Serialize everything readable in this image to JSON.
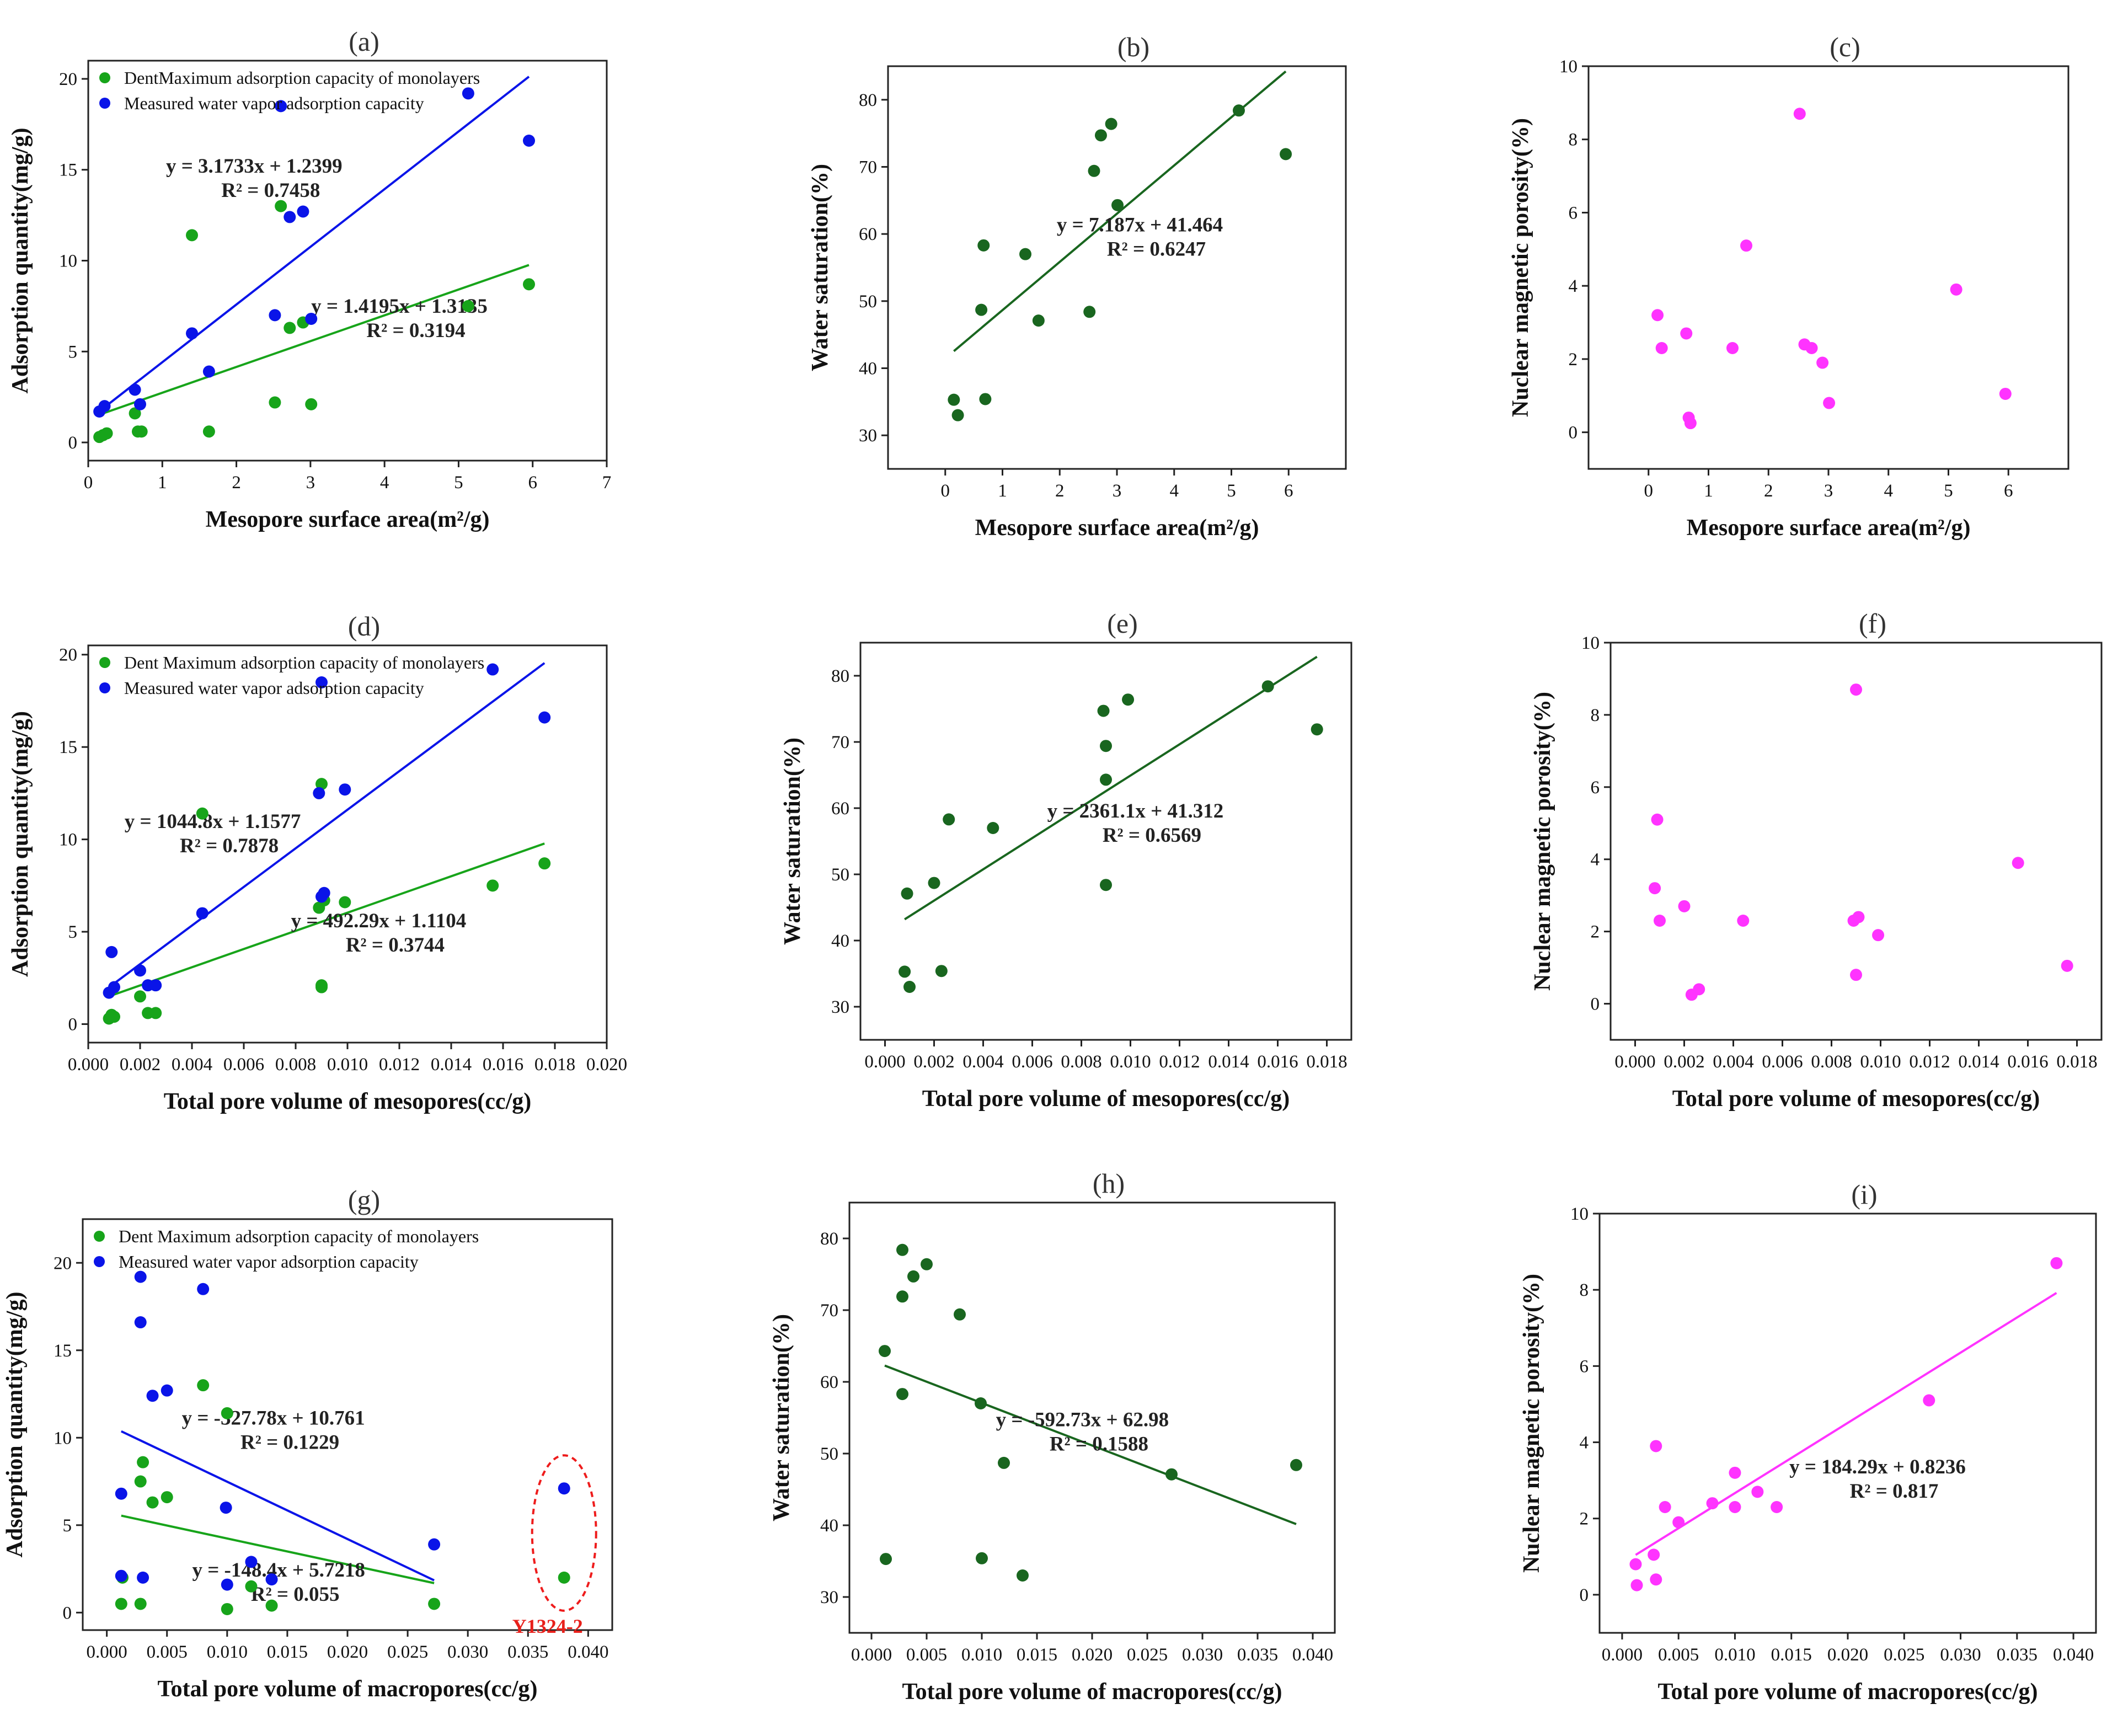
{
  "colors": {
    "green": "#17a41a",
    "blue": "#0a14e8",
    "darkgreen": "#19661f",
    "magenta": "#ff33ff",
    "red": "#ee1c1c",
    "axis": "#222222"
  },
  "chart_data": [
    {
      "id": "a",
      "type": "scatter",
      "panel_label": "(a)",
      "xlabel": "Mesopore surface area(m²/g)",
      "ylabel": "Adsorption quantity(mg/g)",
      "xlim": [
        0,
        7
      ],
      "ylim": [
        -1,
        21
      ],
      "xticks": [
        0,
        1,
        2,
        3,
        4,
        5,
        6,
        7
      ],
      "yticks": [
        0,
        5,
        10,
        15,
        20
      ],
      "xtick_labels": [
        "0",
        "1",
        "2",
        "3",
        "4",
        "5",
        "6",
        "7"
      ],
      "ytick_labels": [
        "0",
        "5",
        "10",
        "15",
        "20"
      ],
      "legend": [
        "DentMaximum adsorption capacity of monolayers",
        "Measured water vapor adsorption capacity"
      ],
      "series": [
        {
          "name": "DentMaximum adsorption capacity of monolayers",
          "color": "green",
          "x": [
            0.15,
            0.2,
            0.25,
            0.63,
            0.67,
            0.72,
            1.4,
            1.63,
            2.52,
            2.6,
            2.72,
            2.9,
            3.01,
            5.13,
            5.95
          ],
          "y": [
            0.3,
            0.4,
            0.5,
            1.6,
            0.6,
            0.6,
            11.4,
            0.6,
            2.2,
            13.0,
            6.3,
            6.6,
            2.1,
            7.5,
            8.7
          ],
          "fit": {
            "x": [
              0.15,
              5.95
            ],
            "label": "y = 1.4195x + 1.3135",
            "r2": "R² = 0.3194"
          }
        },
        {
          "name": "Measured water vapor adsorption capacity",
          "color": "blue",
          "x": [
            0.15,
            0.22,
            0.63,
            0.7,
            1.4,
            1.63,
            2.52,
            2.6,
            2.72,
            2.9,
            3.01,
            5.13,
            5.95
          ],
          "y": [
            1.7,
            2.0,
            2.9,
            2.1,
            6.0,
            3.9,
            7.0,
            18.5,
            12.4,
            12.7,
            6.8,
            19.2,
            16.6
          ],
          "fit": {
            "x": [
              0.15,
              5.95
            ],
            "label": "y = 3.1733x + 1.2399",
            "r2": "R² = 0.7458"
          }
        }
      ]
    },
    {
      "id": "b",
      "type": "scatter",
      "panel_label": "(b)",
      "xlabel": "Mesopore surface area(m²/g)",
      "ylabel": "Water saturation(%)",
      "xlim": [
        -1,
        7
      ],
      "ylim": [
        25,
        85
      ],
      "xticks": [
        0,
        1,
        2,
        3,
        4,
        5,
        6
      ],
      "yticks": [
        30,
        40,
        50,
        60,
        70,
        80
      ],
      "xtick_labels": [
        "0",
        "1",
        "2",
        "3",
        "4",
        "5",
        "6"
      ],
      "ytick_labels": [
        "30",
        "40",
        "50",
        "60",
        "70",
        "80"
      ],
      "legend": [],
      "series": [
        {
          "name": "Water saturation",
          "color": "darkgreen",
          "x": [
            0.15,
            0.22,
            0.63,
            0.67,
            0.7,
            1.4,
            1.63,
            2.52,
            2.6,
            2.72,
            2.9,
            3.01,
            5.13,
            5.95
          ],
          "y": [
            35.3,
            33.0,
            48.7,
            58.3,
            35.4,
            57.0,
            47.1,
            48.4,
            69.4,
            74.7,
            76.4,
            64.3,
            78.4,
            71.9
          ],
          "fit": {
            "x": [
              0.15,
              5.95
            ],
            "label": "y = 7.187x + 41.464",
            "r2": "R² = 0.6247"
          }
        }
      ]
    },
    {
      "id": "c",
      "type": "scatter",
      "panel_label": "(c)",
      "xlabel": "Mesopore surface area(m²/g)",
      "ylabel": "Nuclear magnetic porosity(%)",
      "xlim": [
        -1,
        7
      ],
      "ylim": [
        -1,
        10
      ],
      "xticks": [
        0,
        1,
        2,
        3,
        4,
        5,
        6
      ],
      "yticks": [
        0,
        2,
        4,
        6,
        8,
        10
      ],
      "xtick_labels": [
        "0",
        "1",
        "2",
        "3",
        "4",
        "5",
        "6"
      ],
      "ytick_labels": [
        "0",
        "2",
        "4",
        "6",
        "8",
        "10"
      ],
      "legend": [],
      "series": [
        {
          "name": "Nuclear magnetic porosity",
          "color": "magenta",
          "x": [
            0.15,
            0.22,
            0.63,
            0.67,
            0.7,
            1.4,
            1.63,
            2.52,
            2.6,
            2.72,
            2.9,
            3.01,
            5.13,
            5.95
          ],
          "y": [
            3.2,
            2.3,
            2.7,
            0.4,
            0.25,
            2.3,
            5.1,
            8.7,
            2.4,
            2.3,
            1.9,
            0.8,
            3.9,
            1.05
          ]
        }
      ]
    },
    {
      "id": "d",
      "type": "scatter",
      "panel_label": "(d)",
      "xlabel": "Total pore volume of mesopores(cc/g)",
      "ylabel": "Adsorption quantity(mg/g)",
      "xlim": [
        0,
        0.02
      ],
      "ylim": [
        -1,
        20.5
      ],
      "xticks": [
        0,
        0.002,
        0.004,
        0.006,
        0.008,
        0.01,
        0.012,
        0.014,
        0.016,
        0.018,
        0.02
      ],
      "yticks": [
        0,
        5,
        10,
        15,
        20
      ],
      "xtick_labels": [
        "0.000",
        "0.002",
        "0.004",
        "0.006",
        "0.008",
        "0.010",
        "0.012",
        "0.014",
        "0.016",
        "0.018",
        "0.020"
      ],
      "ytick_labels": [
        "0",
        "5",
        "10",
        "15",
        "20"
      ],
      "legend": [
        "Dent Maximum adsorption capacity of monolayers",
        "Measured water vapor adsorption capacity"
      ],
      "series": [
        {
          "name": "Dent Maximum adsorption capacity of monolayers",
          "color": "green",
          "x": [
            0.0008,
            0.0009,
            0.001,
            0.002,
            0.0023,
            0.0026,
            0.0044,
            0.0089,
            0.009,
            0.009,
            0.009,
            0.0091,
            0.0099,
            0.0156,
            0.0176
          ],
          "y": [
            0.3,
            0.5,
            0.4,
            1.5,
            0.6,
            0.6,
            11.4,
            6.3,
            2.1,
            2.0,
            13.0,
            6.7,
            6.6,
            7.5,
            8.7
          ],
          "fit": {
            "x": [
              0.0008,
              0.0176
            ],
            "label": "y = 492.29x + 1.1104",
            "r2": "R² = 0.3744"
          }
        },
        {
          "name": "Measured water vapor adsorption capacity",
          "color": "blue",
          "x": [
            0.0008,
            0.0009,
            0.001,
            0.002,
            0.0023,
            0.0026,
            0.0044,
            0.0089,
            0.009,
            0.009,
            0.0091,
            0.0099,
            0.0156,
            0.0176
          ],
          "y": [
            1.7,
            3.9,
            2.0,
            2.9,
            2.1,
            2.1,
            6.0,
            12.5,
            18.5,
            6.9,
            7.1,
            12.7,
            19.2,
            16.6
          ],
          "fit": {
            "x": [
              0.0008,
              0.0176
            ],
            "label": "y = 1044.8x + 1.1577",
            "r2": "R² = 0.7878"
          }
        }
      ]
    },
    {
      "id": "e",
      "type": "scatter",
      "panel_label": "(e)",
      "xlabel": "Total pore volume of mesopores(cc/g)",
      "ylabel": "Water saturation(%)",
      "xlim": [
        -0.001,
        0.019
      ],
      "ylim": [
        25,
        85
      ],
      "xticks": [
        0,
        0.002,
        0.004,
        0.006,
        0.008,
        0.01,
        0.012,
        0.014,
        0.016,
        0.018
      ],
      "yticks": [
        30,
        40,
        50,
        60,
        70,
        80
      ],
      "xtick_labels": [
        "0.000",
        "0.002",
        "0.004",
        "0.006",
        "0.008",
        "0.010",
        "0.012",
        "0.014",
        "0.016",
        "0.018"
      ],
      "ytick_labels": [
        "30",
        "40",
        "50",
        "60",
        "70",
        "80"
      ],
      "legend": [],
      "series": [
        {
          "name": "Water saturation",
          "color": "darkgreen",
          "x": [
            0.0008,
            0.0009,
            0.001,
            0.002,
            0.0023,
            0.0026,
            0.0044,
            0.0089,
            0.009,
            0.009,
            0.009,
            0.0099,
            0.0156,
            0.0176
          ],
          "y": [
            35.3,
            47.1,
            33.0,
            48.7,
            35.4,
            58.3,
            57.0,
            74.7,
            69.4,
            64.3,
            48.4,
            76.4,
            78.4,
            71.9
          ],
          "fit": {
            "x": [
              0.0008,
              0.0176
            ],
            "label": "y = 2361.1x + 41.312",
            "r2": "R² = 0.6569"
          }
        }
      ]
    },
    {
      "id": "f",
      "type": "scatter",
      "panel_label": "(f)",
      "xlabel": "Total pore volume of mesopores(cc/g)",
      "ylabel": "Nuclear magnetic porosity(%)",
      "xlim": [
        -0.001,
        0.019
      ],
      "ylim": [
        -1,
        10
      ],
      "xticks": [
        0,
        0.002,
        0.004,
        0.006,
        0.008,
        0.01,
        0.012,
        0.014,
        0.016,
        0.018
      ],
      "yticks": [
        0,
        2,
        4,
        6,
        8,
        10
      ],
      "xtick_labels": [
        "0.000",
        "0.002",
        "0.004",
        "0.006",
        "0.008",
        "0.010",
        "0.012",
        "0.014",
        "0.016",
        "0.018"
      ],
      "ytick_labels": [
        "0",
        "2",
        "4",
        "6",
        "8",
        "10"
      ],
      "legend": [],
      "series": [
        {
          "name": "Nuclear magnetic porosity",
          "color": "magenta",
          "x": [
            0.0008,
            0.0009,
            0.001,
            0.002,
            0.0023,
            0.0026,
            0.0044,
            0.0089,
            0.009,
            0.009,
            0.0091,
            0.0099,
            0.0156,
            0.0176
          ],
          "y": [
            3.2,
            5.1,
            2.3,
            2.7,
            0.25,
            0.4,
            2.3,
            2.3,
            8.7,
            0.8,
            2.4,
            1.9,
            3.9,
            1.05
          ]
        }
      ]
    },
    {
      "id": "g",
      "type": "scatter",
      "panel_label": "(g)",
      "xlabel": "Total pore volume of macropores(cc/g)",
      "ylabel": "Adsorption quantity(mg/g)",
      "xlim": [
        -0.002,
        0.042
      ],
      "ylim": [
        -1,
        22.5
      ],
      "xticks": [
        0,
        0.005,
        0.01,
        0.015,
        0.02,
        0.025,
        0.03,
        0.035,
        0.04
      ],
      "yticks": [
        0,
        5,
        10,
        15,
        20
      ],
      "xtick_labels": [
        "0.000",
        "0.005",
        "0.010",
        "0.015",
        "0.020",
        "0.025",
        "0.030",
        "0.035",
        "0.040"
      ],
      "ytick_labels": [
        "0",
        "5",
        "10",
        "15",
        "20"
      ],
      "legend": [
        "Dent Maximum adsorption capacity of monolayers",
        "Measured water vapor adsorption capacity"
      ],
      "annotation": "Y1324-2",
      "highlight": {
        "x": 0.038,
        "y_low": 2.0,
        "y_high": 7.1
      },
      "series": [
        {
          "name": "Dent Maximum adsorption capacity of monolayers",
          "color": "green",
          "x": [
            0.0012,
            0.0013,
            0.0028,
            0.0028,
            0.003,
            0.0038,
            0.005,
            0.008,
            0.01,
            0.01,
            0.012,
            0.0137,
            0.0272,
            0.038
          ],
          "y": [
            0.5,
            2.0,
            0.5,
            7.5,
            8.6,
            6.3,
            6.6,
            13.0,
            11.4,
            0.2,
            1.5,
            0.4,
            0.5,
            2.0
          ],
          "fit": {
            "x": [
              0.0012,
              0.0272
            ],
            "label": "y = -148.4x + 5.7218",
            "r2": "R² = 0.055"
          }
        },
        {
          "name": "Measured water vapor adsorption capacity",
          "color": "blue",
          "x": [
            0.0012,
            0.0012,
            0.0028,
            0.0028,
            0.003,
            0.0038,
            0.005,
            0.008,
            0.0099,
            0.01,
            0.012,
            0.0137,
            0.0272,
            0.038
          ],
          "y": [
            6.8,
            2.1,
            19.2,
            16.6,
            2.0,
            12.4,
            12.7,
            18.5,
            6.0,
            1.6,
            2.9,
            1.9,
            3.9,
            7.1
          ],
          "fit": {
            "x": [
              0.0012,
              0.0272
            ],
            "label": "y = -327.78x + 10.761",
            "r2": "R² = 0.1229"
          }
        }
      ]
    },
    {
      "id": "h",
      "type": "scatter",
      "panel_label": "(h)",
      "xlabel": "Total pore volume of macropores(cc/g)",
      "ylabel": "Water saturation(%)",
      "xlim": [
        -0.002,
        0.042
      ],
      "ylim": [
        25,
        85
      ],
      "xticks": [
        0,
        0.005,
        0.01,
        0.015,
        0.02,
        0.025,
        0.03,
        0.035,
        0.04
      ],
      "yticks": [
        30,
        40,
        50,
        60,
        70,
        80
      ],
      "xtick_labels": [
        "0.000",
        "0.005",
        "0.010",
        "0.015",
        "0.020",
        "0.025",
        "0.030",
        "0.035",
        "0.040"
      ],
      "ytick_labels": [
        "30",
        "40",
        "50",
        "60",
        "70",
        "80"
      ],
      "legend": [],
      "series": [
        {
          "name": "Water saturation",
          "color": "darkgreen",
          "x": [
            0.0012,
            0.0013,
            0.0028,
            0.0028,
            0.0028,
            0.0038,
            0.005,
            0.008,
            0.0099,
            0.01,
            0.012,
            0.0137,
            0.0272,
            0.0385
          ],
          "y": [
            64.3,
            35.3,
            78.4,
            71.9,
            58.3,
            74.7,
            76.4,
            69.4,
            57.0,
            35.4,
            48.7,
            33.0,
            47.1,
            48.4
          ],
          "fit": {
            "x": [
              0.0012,
              0.0385
            ],
            "label": "y = -592.73x + 62.98",
            "r2": "R² = 0.1588"
          }
        }
      ]
    },
    {
      "id": "i",
      "type": "scatter",
      "panel_label": "(i)",
      "xlabel": "Total pore volume of macropores(cc/g)",
      "ylabel": "Nuclear magnetic porosity(%)",
      "xlim": [
        -0.002,
        0.042
      ],
      "ylim": [
        -1,
        10
      ],
      "xticks": [
        0,
        0.005,
        0.01,
        0.015,
        0.02,
        0.025,
        0.03,
        0.035,
        0.04
      ],
      "yticks": [
        0,
        2,
        4,
        6,
        8,
        10
      ],
      "xtick_labels": [
        "0.000",
        "0.005",
        "0.010",
        "0.015",
        "0.020",
        "0.025",
        "0.030",
        "0.035",
        "0.040"
      ],
      "ytick_labels": [
        "0",
        "2",
        "4",
        "6",
        "8",
        "10"
      ],
      "legend": [],
      "series": [
        {
          "name": "Nuclear magnetic porosity",
          "color": "magenta",
          "x": [
            0.0012,
            0.0013,
            0.0028,
            0.003,
            0.0038,
            0.005,
            0.008,
            0.01,
            0.01,
            0.012,
            0.0137,
            0.0272,
            0.0385,
            0.003
          ],
          "y": [
            0.8,
            0.25,
            1.05,
            3.9,
            2.3,
            1.9,
            2.4,
            3.2,
            2.3,
            2.7,
            2.3,
            5.1,
            8.7,
            0.4
          ],
          "fit": {
            "x": [
              0.0012,
              0.0385
            ],
            "label": "y = 184.29x + 0.8236",
            "r2": "R² = 0.817"
          }
        }
      ]
    }
  ]
}
